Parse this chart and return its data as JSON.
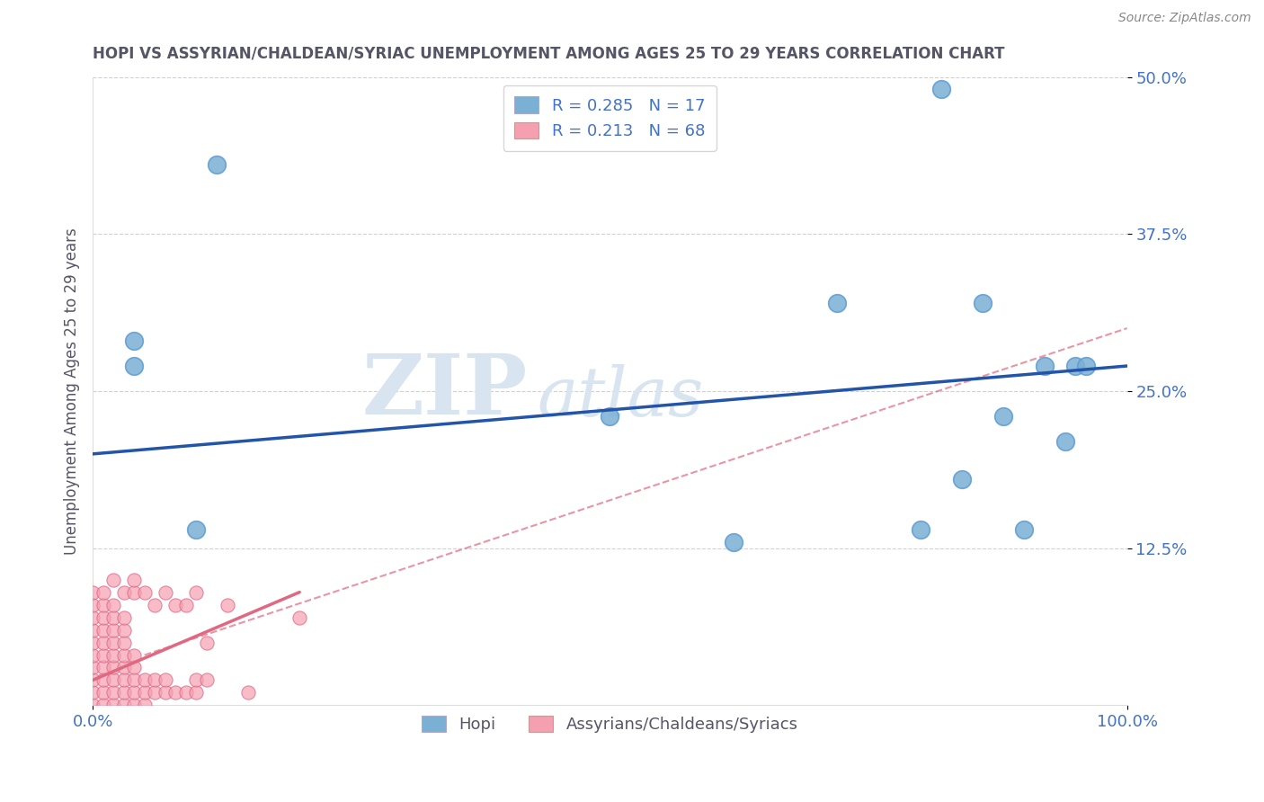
{
  "title": "HOPI VS ASSYRIAN/CHALDEAN/SYRIAC UNEMPLOYMENT AMONG AGES 25 TO 29 YEARS CORRELATION CHART",
  "source": "Source: ZipAtlas.com",
  "ylabel": "Unemployment Among Ages 25 to 29 years",
  "xlim": [
    0,
    1.0
  ],
  "ylim": [
    0,
    0.5
  ],
  "x_ticks": [
    0.0,
    1.0
  ],
  "x_tick_labels": [
    "0.0%",
    "100.0%"
  ],
  "y_ticks": [
    0.125,
    0.25,
    0.375,
    0.5
  ],
  "y_tick_labels": [
    "12.5%",
    "25.0%",
    "37.5%",
    "50.0%"
  ],
  "hopi_color": "#7ab0d4",
  "hopi_edge_color": "#5b9bd5",
  "assyrian_color": "#f4a0b0",
  "assyrian_edge_color": "#e06080",
  "hopi_line_color": "#2255aa",
  "assyrian_line_color": "#e06880",
  "assyrian_dash_color": "#e06880",
  "R_hopi": 0.285,
  "N_hopi": 17,
  "R_assyrian": 0.213,
  "N_assyrian": 68,
  "legend_label_hopi": "Hopi",
  "legend_label_assyrian": "Assyrians/Chaldeans/Syriacs",
  "watermark_text": "ZIP",
  "watermark_text2": "atlas",
  "hopi_scatter_x": [
    0.04,
    0.04,
    0.1,
    0.12,
    0.5,
    0.62,
    0.72,
    0.8,
    0.82,
    0.84,
    0.86,
    0.88,
    0.9,
    0.92,
    0.94,
    0.95,
    0.96
  ],
  "hopi_scatter_y": [
    0.27,
    0.29,
    0.14,
    0.43,
    0.23,
    0.13,
    0.32,
    0.14,
    0.49,
    0.18,
    0.32,
    0.23,
    0.14,
    0.27,
    0.21,
    0.27,
    0.27
  ],
  "assyrian_scatter_x": [
    0.0,
    0.0,
    0.0,
    0.0,
    0.0,
    0.0,
    0.0,
    0.0,
    0.0,
    0.0,
    0.01,
    0.01,
    0.01,
    0.01,
    0.01,
    0.01,
    0.01,
    0.01,
    0.01,
    0.01,
    0.02,
    0.02,
    0.02,
    0.02,
    0.02,
    0.02,
    0.02,
    0.02,
    0.02,
    0.02,
    0.03,
    0.03,
    0.03,
    0.03,
    0.03,
    0.03,
    0.03,
    0.03,
    0.03,
    0.04,
    0.04,
    0.04,
    0.04,
    0.04,
    0.04,
    0.04,
    0.05,
    0.05,
    0.05,
    0.05,
    0.06,
    0.06,
    0.06,
    0.07,
    0.07,
    0.07,
    0.08,
    0.08,
    0.09,
    0.09,
    0.1,
    0.1,
    0.1,
    0.11,
    0.11,
    0.13,
    0.15,
    0.2
  ],
  "assyrian_scatter_y": [
    0.0,
    0.01,
    0.02,
    0.03,
    0.04,
    0.05,
    0.06,
    0.07,
    0.08,
    0.09,
    0.0,
    0.01,
    0.02,
    0.03,
    0.04,
    0.05,
    0.06,
    0.07,
    0.08,
    0.09,
    0.0,
    0.01,
    0.02,
    0.03,
    0.04,
    0.05,
    0.06,
    0.07,
    0.08,
    0.1,
    0.0,
    0.01,
    0.02,
    0.03,
    0.04,
    0.05,
    0.06,
    0.07,
    0.09,
    0.0,
    0.01,
    0.02,
    0.03,
    0.04,
    0.09,
    0.1,
    0.0,
    0.01,
    0.02,
    0.09,
    0.01,
    0.02,
    0.08,
    0.01,
    0.02,
    0.09,
    0.01,
    0.08,
    0.01,
    0.08,
    0.01,
    0.02,
    0.09,
    0.02,
    0.05,
    0.08,
    0.01,
    0.07
  ],
  "background_color": "#ffffff",
  "grid_color": "#cccccc",
  "title_color": "#555566",
  "axis_color": "#555566",
  "tick_color": "#4472c4",
  "legend_text_color": "#4472c4"
}
